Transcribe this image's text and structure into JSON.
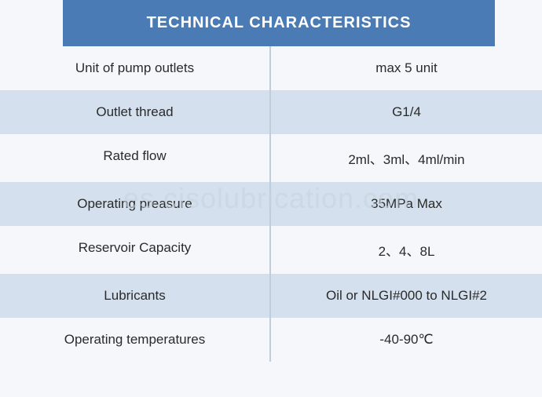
{
  "header": {
    "title": "TECHNICAL CHARACTERISTICS",
    "background_color": "#4b7bb5",
    "text_color": "#ffffff",
    "fontsize": 20
  },
  "table": {
    "row_even_bg": "#f5f7fb",
    "row_odd_bg": "#d4e0ed",
    "text_color": "#2a2a2a",
    "fontsize": 17,
    "divider_color": "#c0cddb",
    "rows": [
      {
        "label": "Unit of pump outlets",
        "value": "max 5 unit"
      },
      {
        "label": "Outlet thread",
        "value": "G1/4"
      },
      {
        "label": "Rated flow",
        "value": "2ml、3ml、4ml/min"
      },
      {
        "label": "Operating preasure",
        "value": "35MPa Max"
      },
      {
        "label": "Reservoir Capacity",
        "value": "2、4、8L"
      },
      {
        "label": "Lubricants",
        "value": "Oil or  NLGI#000 to NLGI#2"
      },
      {
        "label": "Operating temperatures",
        "value": "-40-90℃"
      }
    ]
  },
  "watermark": {
    "text": "es.cisolubrication.com",
    "color": "rgba(200, 210, 225, 0.6)",
    "fontsize": 36
  }
}
